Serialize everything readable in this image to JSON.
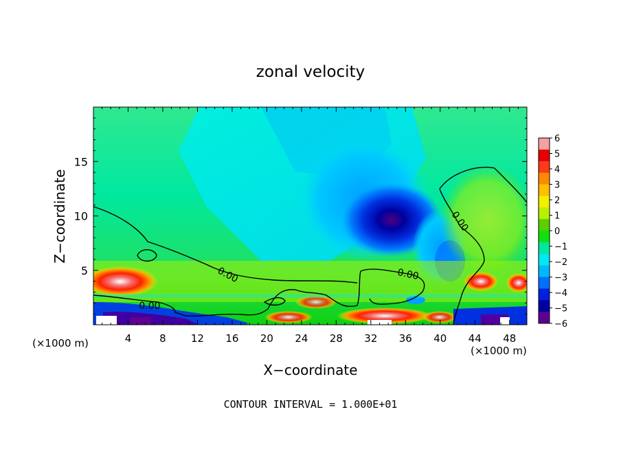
{
  "chart_data": {
    "type": "heatmap",
    "title": "zonal velocity",
    "xlabel": "X−coordinate",
    "ylabel": "Z−coordinate",
    "x_unit": "(×1000 m)",
    "x_ticks": [
      4,
      8,
      12,
      16,
      20,
      24,
      28,
      32,
      36,
      40,
      44,
      48
    ],
    "y_ticks": [
      5,
      10,
      15
    ],
    "xlim": [
      0,
      50
    ],
    "ylim": [
      0,
      20
    ],
    "colorbar": {
      "labels": [
        "6",
        "5",
        "4",
        "3",
        "2",
        "1",
        "0",
        "−1",
        "−2",
        "−3",
        "−4",
        "−5",
        "−6"
      ],
      "range": [
        -6,
        6
      ],
      "colors": [
        "#f7a0a0",
        "#e60000",
        "#ff3a1a",
        "#ff8a00",
        "#ffc000",
        "#f0f000",
        "#b8f000",
        "#5ad000",
        "#10e010",
        "#00e8a0",
        "#00e8f0",
        "#00b8ff",
        "#0070ff",
        "#0020e0",
        "#0000a0",
        "#600090"
      ]
    },
    "contour_labels": [
      "0.00",
      "0.00",
      "0.00",
      "0.00"
    ],
    "footer": "CONTOUR INTERVAL = 1.000E+01"
  }
}
